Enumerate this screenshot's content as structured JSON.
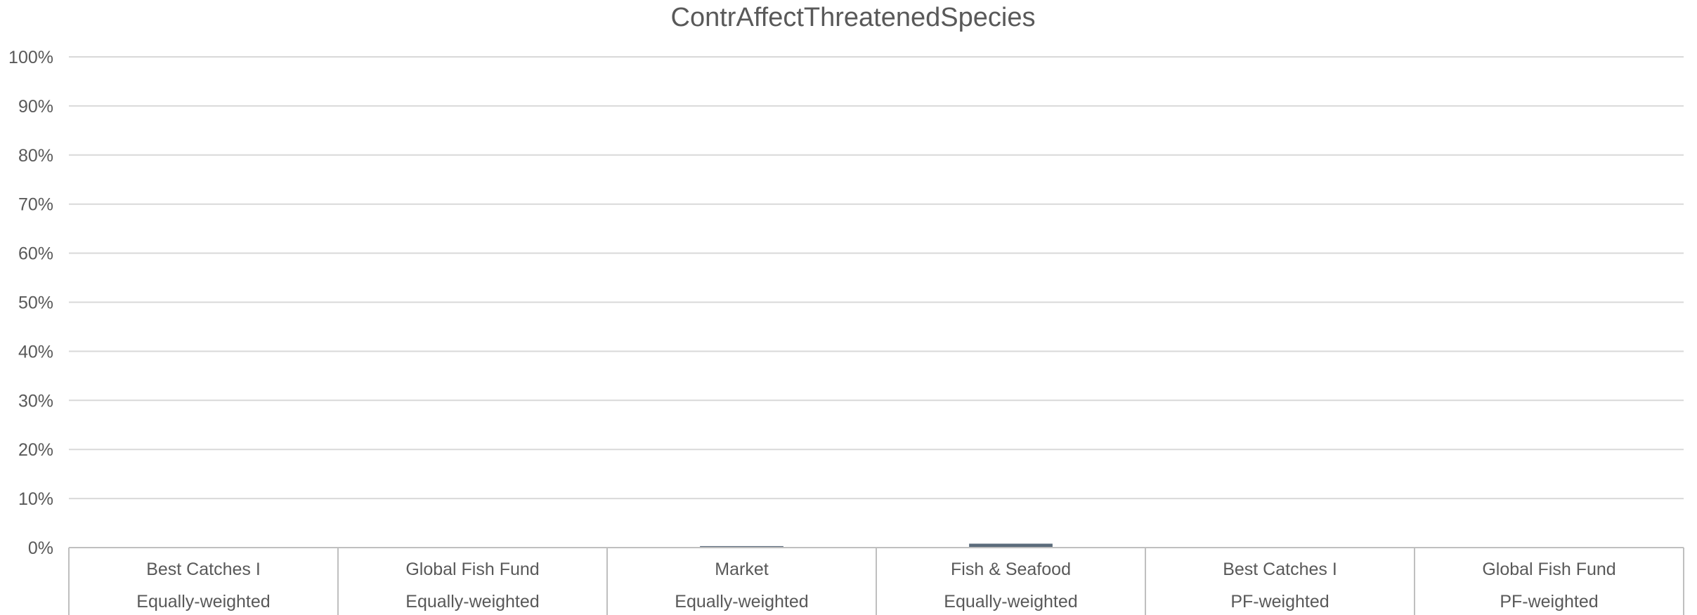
{
  "chart_data": {
    "type": "bar",
    "title": "ContrAffectThreatenedSpecies",
    "categories": [
      [
        "Best Catches I",
        "Equally-weighted"
      ],
      [
        "Global Fish Fund",
        "Equally-weighted"
      ],
      [
        "Market",
        "Equally-weighted"
      ],
      [
        "Fish & Seafood",
        "Equally-weighted"
      ],
      [
        "Best Catches I",
        "PF-weighted"
      ],
      [
        "Global Fish Fund",
        "PF-weighted"
      ]
    ],
    "values": [
      0,
      0,
      0.3,
      0.8,
      0,
      0
    ],
    "value_unit": "%",
    "ylim": [
      0,
      100
    ],
    "yticks": [
      "0%",
      "10%",
      "20%",
      "30%",
      "40%",
      "50%",
      "60%",
      "70%",
      "80%",
      "90%",
      "100%"
    ],
    "ytick_values": [
      0,
      10,
      20,
      30,
      40,
      50,
      60,
      70,
      80,
      90,
      100
    ],
    "grid": true,
    "legend": "none",
    "colors": {
      "bar": "#5b6b7b",
      "grid": "#d9d9d9",
      "text": "#595959"
    }
  }
}
